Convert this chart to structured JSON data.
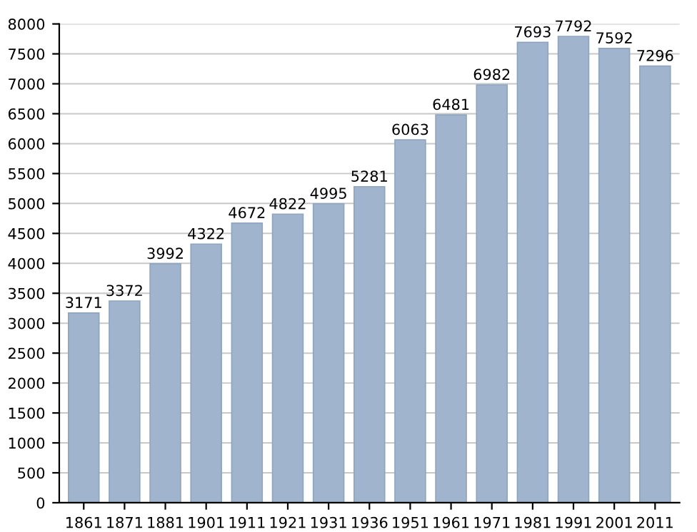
{
  "chart_data": {
    "type": "bar",
    "categories": [
      "1861",
      "1871",
      "1881",
      "1901",
      "1911",
      "1921",
      "1931",
      "1936",
      "1951",
      "1961",
      "1971",
      "1981",
      "1991",
      "2001",
      "2011"
    ],
    "values": [
      3171,
      3372,
      3992,
      4322,
      4672,
      4822,
      4995,
      5281,
      6063,
      6481,
      6982,
      7693,
      7792,
      7592,
      7296
    ],
    "color": "#a0b5cd",
    "ylim": [
      0,
      8000
    ],
    "yticks": [
      0,
      500,
      1000,
      1500,
      2000,
      2500,
      3000,
      3500,
      4000,
      4500,
      5000,
      5500,
      6000,
      6500,
      7000,
      7500,
      8000
    ],
    "grid": "y",
    "data_labels": true
  }
}
